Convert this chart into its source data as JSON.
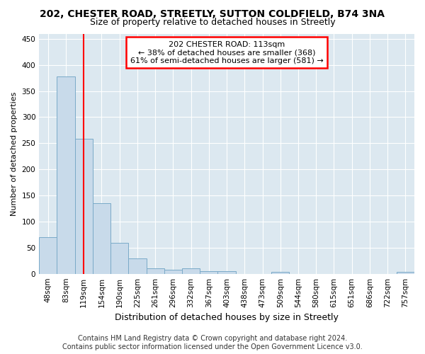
{
  "title1": "202, CHESTER ROAD, STREETLY, SUTTON COLDFIELD, B74 3NA",
  "title2": "Size of property relative to detached houses in Streetly",
  "xlabel": "Distribution of detached houses by size in Streetly",
  "ylabel": "Number of detached properties",
  "footer1": "Contains HM Land Registry data © Crown copyright and database right 2024.",
  "footer2": "Contains public sector information licensed under the Open Government Licence v3.0.",
  "bin_labels": [
    "48sqm",
    "83sqm",
    "119sqm",
    "154sqm",
    "190sqm",
    "225sqm",
    "261sqm",
    "296sqm",
    "332sqm",
    "367sqm",
    "403sqm",
    "438sqm",
    "473sqm",
    "509sqm",
    "544sqm",
    "580sqm",
    "615sqm",
    "651sqm",
    "686sqm",
    "722sqm",
    "757sqm"
  ],
  "bar_heights": [
    70,
    378,
    258,
    135,
    59,
    30,
    10,
    8,
    10,
    5,
    5,
    0,
    0,
    4,
    0,
    0,
    0,
    0,
    0,
    0,
    4
  ],
  "bar_color": "#c8daea",
  "bar_edge_color": "#7aaac8",
  "annotation_text1": "202 CHESTER ROAD: 113sqm",
  "annotation_text2": "← 38% of detached houses are smaller (368)",
  "annotation_text3": "61% of semi-detached houses are larger (581) →",
  "annotation_box_color": "white",
  "annotation_border_color": "red",
  "vline_x": 2.0,
  "ylim": [
    0,
    460
  ],
  "yticks": [
    0,
    50,
    100,
    150,
    200,
    250,
    300,
    350,
    400,
    450
  ],
  "plot_bg_color": "#dce8f0",
  "figure_bg_color": "#ffffff",
  "grid_color": "#ffffff",
  "title1_fontsize": 10,
  "title2_fontsize": 9,
  "xlabel_fontsize": 9,
  "ylabel_fontsize": 8,
  "tick_fontsize": 7.5,
  "footer_fontsize": 7
}
